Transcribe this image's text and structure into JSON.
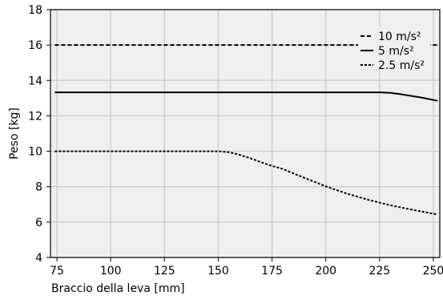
{
  "chart_data": {
    "type": "line",
    "title": "",
    "xlabel": "Braccio della leva [mm]",
    "ylabel": "Peso [kg]",
    "xlim": [
      72,
      253
    ],
    "ylim": [
      4,
      18
    ],
    "x_ticks": [
      75,
      100,
      125,
      150,
      175,
      200,
      225,
      250
    ],
    "y_ticks": [
      4,
      6,
      8,
      10,
      12,
      14,
      16,
      18
    ],
    "grid": true,
    "legend_position": "top-right",
    "colors": {
      "plot_background": "#efefef",
      "grid": "#c8c8c8",
      "series": "#000000"
    },
    "series": [
      {
        "name": "10 m/s²",
        "style": "dashed",
        "x": [
          74,
          100,
          125,
          150,
          175,
          200,
          225,
          252
        ],
        "y": [
          16.0,
          16.0,
          16.0,
          16.0,
          16.0,
          16.0,
          16.0,
          16.0
        ]
      },
      {
        "name": "5 m/s²",
        "style": "solid",
        "x": [
          74,
          100,
          125,
          150,
          175,
          200,
          225,
          230,
          235,
          240,
          245,
          252
        ],
        "y": [
          13.33,
          13.33,
          13.33,
          13.33,
          13.33,
          13.33,
          13.33,
          13.3,
          13.22,
          13.12,
          13.02,
          12.85
        ]
      },
      {
        "name": "2.5 m/s²",
        "style": "dashdot",
        "x": [
          74,
          100,
          125,
          150,
          155,
          160,
          165,
          170,
          175,
          180,
          190,
          200,
          210,
          220,
          230,
          240,
          252
        ],
        "y": [
          10.0,
          10.0,
          10.0,
          10.0,
          9.95,
          9.8,
          9.6,
          9.38,
          9.17,
          9.0,
          8.5,
          8.02,
          7.6,
          7.25,
          6.95,
          6.7,
          6.43
        ]
      }
    ]
  }
}
